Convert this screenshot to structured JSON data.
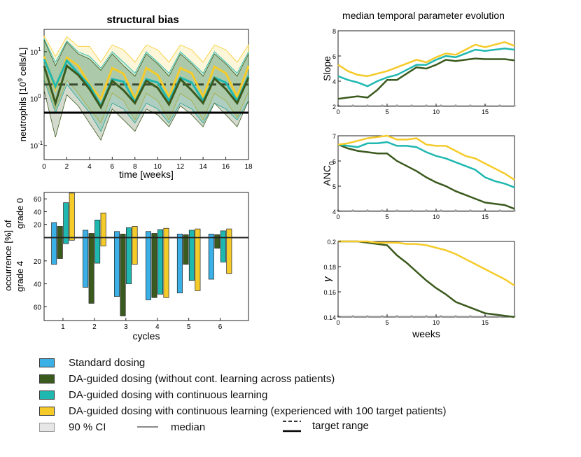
{
  "colors": {
    "standard": "#3ab0e6",
    "da": "#3b5a1e",
    "cl": "#1fb8b0",
    "exp": "#f5cb2a",
    "ci": "#e6e6e6",
    "median": "#8a8a8a"
  },
  "chart_data": [
    {
      "type": "line",
      "title": "structural bias",
      "xlabel": "time [weeks]",
      "ylabel": "neutrophils [10^9 cells/L]",
      "yscale": "log",
      "xlim": [
        0,
        18
      ],
      "ylim": [
        0.05,
        30
      ],
      "xticks": [
        0,
        2,
        4,
        6,
        8,
        10,
        12,
        14,
        16,
        18
      ],
      "yticks": [
        {
          "value": 10,
          "label": "10^1"
        },
        {
          "value": 1,
          "label": "10^0"
        },
        {
          "value": 0.1,
          "label": "10^-1"
        }
      ],
      "target_range": [
        0.5,
        2.0
      ],
      "series": [
        {
          "name": "DA-guided dosing (without cont. learning across patients)",
          "key": "da",
          "x": [
            0,
            1,
            2,
            3,
            4,
            5,
            6,
            7,
            8,
            9,
            10,
            11,
            12,
            13,
            14,
            15,
            16,
            17,
            18
          ],
          "median": [
            5,
            0.8,
            5,
            3.2,
            1.6,
            0.65,
            2.4,
            1.5,
            0.8,
            2.4,
            1.7,
            0.75,
            2.6,
            1.5,
            0.8,
            2.7,
            1.6,
            0.8,
            2.8
          ],
          "ci_low": [
            1.5,
            0.15,
            1.2,
            0.7,
            0.3,
            0.13,
            0.6,
            0.35,
            0.2,
            0.6,
            0.45,
            0.25,
            0.7,
            0.45,
            0.25,
            0.8,
            0.45,
            0.25,
            0.9
          ],
          "ci_high": [
            18,
            5,
            16,
            9,
            7,
            4,
            9,
            5,
            3,
            9,
            5.5,
            3,
            9,
            5.5,
            3,
            9,
            5.5,
            3,
            9
          ]
        },
        {
          "name": "DA-guided dosing with continuous learning",
          "key": "cl",
          "x": [
            0,
            1,
            2,
            3,
            4,
            5,
            6,
            7,
            8,
            9,
            10,
            11,
            12,
            13,
            14,
            15,
            16,
            17,
            18
          ],
          "median": [
            7,
            1.8,
            6.5,
            3.5,
            1.9,
            0.7,
            2.6,
            2.3,
            0.85,
            2.6,
            2.2,
            0.9,
            2.8,
            2.2,
            0.9,
            2.8,
            2.2,
            0.9,
            3
          ],
          "ci_low": [
            2.5,
            0.5,
            2,
            1,
            0.5,
            0.2,
            0.8,
            0.6,
            0.3,
            0.8,
            0.6,
            0.3,
            0.8,
            0.6,
            0.3,
            0.8,
            0.6,
            0.35,
            0.9
          ],
          "ci_high": [
            19,
            6,
            17,
            10,
            8,
            4.5,
            10,
            6,
            3.5,
            10,
            6,
            3.5,
            10,
            6,
            3.5,
            10,
            6,
            3.5,
            10
          ]
        },
        {
          "name": "DA-guided dosing with continuous learning (experienced with 100 target patients)",
          "key": "exp",
          "x": [
            0,
            1,
            2,
            3,
            4,
            5,
            6,
            7,
            8,
            9,
            10,
            11,
            12,
            13,
            14,
            15,
            16,
            17,
            18
          ],
          "median": [
            8,
            1.6,
            7.5,
            5,
            2,
            1,
            4.5,
            3.4,
            1,
            4.5,
            3.2,
            1.1,
            4.5,
            3.5,
            1.1,
            4.8,
            3.5,
            1.1,
            5
          ],
          "ci_low": [
            3,
            0.6,
            2.5,
            1.3,
            0.6,
            0.3,
            1.3,
            0.9,
            0.35,
            1.3,
            0.9,
            0.35,
            1.3,
            0.9,
            0.35,
            1.3,
            0.9,
            0.4,
            1.4
          ],
          "ci_high": [
            22,
            8,
            21,
            13,
            13,
            6,
            14,
            11,
            6,
            14,
            11,
            6,
            14,
            11,
            6,
            14,
            11,
            6,
            14
          ]
        }
      ]
    },
    {
      "type": "bar",
      "xlabel": "cycles",
      "ylabel_top": "occurrence [%] of",
      "ylabel_grade0": "grade 0",
      "ylabel_grade4": "grade 4",
      "categories": [
        "1",
        "2",
        "3",
        "4",
        "5",
        "6"
      ],
      "yticks_grade0": [
        20,
        40,
        60
      ],
      "yticks_grade4": [
        20,
        40,
        60
      ],
      "grade0": [
        {
          "key": "standard",
          "values": [
            23,
            11,
            9,
            9,
            5,
            5
          ]
        },
        {
          "key": "da",
          "values": [
            17,
            6,
            5,
            6,
            4,
            4
          ]
        },
        {
          "key": "cl",
          "values": [
            54,
            27,
            15,
            12,
            11,
            10
          ]
        },
        {
          "key": "exp",
          "values": [
            69,
            38,
            17,
            14,
            13,
            13
          ]
        }
      ],
      "grade4": [
        {
          "key": "standard",
          "values": [
            23,
            43,
            51,
            54,
            48,
            36
          ]
        },
        {
          "key": "da",
          "values": [
            18,
            57,
            68,
            52,
            23,
            9
          ]
        },
        {
          "key": "cl",
          "values": [
            5,
            22,
            40,
            49,
            37,
            21
          ]
        },
        {
          "key": "exp",
          "values": [
            2,
            7,
            23,
            52,
            46,
            31
          ]
        }
      ]
    },
    {
      "type": "line",
      "title": "median temporal parameter evolution",
      "panels": [
        {
          "ylabel": "Slope",
          "ylim": [
            2,
            8
          ],
          "yticks": [
            2,
            4,
            6,
            8
          ],
          "xticks": [
            0,
            5,
            10,
            15
          ],
          "x": [
            0,
            1,
            2,
            3,
            4,
            5,
            6,
            7,
            8,
            9,
            10,
            11,
            12,
            13,
            14,
            15,
            16,
            17,
            18
          ],
          "series": [
            {
              "key": "da",
              "values": [
                2.6,
                2.7,
                2.8,
                2.7,
                3.3,
                4.1,
                4.1,
                4.6,
                5.1,
                5.0,
                5.3,
                5.7,
                5.6,
                5.7,
                5.8,
                5.75,
                5.75,
                5.75,
                5.65
              ]
            },
            {
              "key": "cl",
              "values": [
                4.4,
                4.1,
                3.9,
                3.6,
                4.0,
                4.3,
                4.5,
                4.9,
                5.3,
                5.3,
                5.7,
                6.0,
                5.9,
                6.2,
                6.5,
                6.4,
                6.5,
                6.6,
                6.5
              ]
            },
            {
              "key": "exp",
              "values": [
                5.3,
                4.8,
                4.5,
                4.4,
                4.6,
                4.8,
                5.1,
                5.4,
                5.7,
                5.5,
                5.9,
                6.2,
                6.1,
                6.5,
                6.9,
                6.7,
                6.9,
                7.1,
                6.8
              ]
            }
          ]
        },
        {
          "ylabel": "ANC_0",
          "ylim": [
            4,
            7
          ],
          "yticks": [
            4,
            5,
            6,
            7
          ],
          "xticks": [
            0,
            5,
            10,
            15
          ],
          "x": [
            0,
            1,
            2,
            3,
            4,
            5,
            6,
            7,
            8,
            9,
            10,
            11,
            12,
            13,
            14,
            15,
            16,
            17,
            18
          ],
          "series": [
            {
              "key": "da",
              "values": [
                6.65,
                6.5,
                6.4,
                6.35,
                6.3,
                6.3,
                6.0,
                5.8,
                5.6,
                5.35,
                5.15,
                5.0,
                4.8,
                4.65,
                4.5,
                4.35,
                4.3,
                4.25,
                4.1
              ]
            },
            {
              "key": "cl",
              "values": [
                6.65,
                6.6,
                6.55,
                6.7,
                6.7,
                6.75,
                6.6,
                6.6,
                6.55,
                6.35,
                6.2,
                6.1,
                5.95,
                5.8,
                5.65,
                5.35,
                5.2,
                5.1,
                4.95
              ]
            },
            {
              "key": "exp",
              "values": [
                6.65,
                6.7,
                6.8,
                6.9,
                6.95,
                7.0,
                6.85,
                6.85,
                6.9,
                6.65,
                6.6,
                6.6,
                6.4,
                6.2,
                6.1,
                5.9,
                5.7,
                5.5,
                5.25
              ]
            }
          ]
        },
        {
          "ylabel": "γ",
          "xlabel": "weeks",
          "ylim": [
            0.14,
            0.2
          ],
          "yticks": [
            0.14,
            0.16,
            0.18,
            0.2
          ],
          "xticks": [
            0,
            5,
            10,
            15
          ],
          "x": [
            0,
            1,
            2,
            3,
            4,
            5,
            6,
            7,
            8,
            9,
            10,
            11,
            12,
            13,
            14,
            15,
            16,
            17,
            18
          ],
          "series": [
            {
              "key": "da",
              "values": [
                0.2,
                0.2,
                0.2,
                0.199,
                0.198,
                0.197,
                0.189,
                0.183,
                0.176,
                0.169,
                0.163,
                0.158,
                0.152,
                0.149,
                0.146,
                0.143,
                0.142,
                0.141,
                0.14
              ]
            },
            {
              "key": "exp",
              "values": [
                0.2,
                0.2,
                0.2,
                0.2,
                0.199,
                0.199,
                0.199,
                0.198,
                0.198,
                0.197,
                0.195,
                0.193,
                0.19,
                0.186,
                0.182,
                0.178,
                0.174,
                0.17,
                0.165
              ]
            }
          ]
        }
      ]
    }
  ],
  "legend": {
    "items": [
      {
        "key": "standard",
        "label": "Standard dosing"
      },
      {
        "key": "da",
        "label": "DA-guided dosing (without cont. learning across patients)"
      },
      {
        "key": "cl",
        "label": "DA-guided dosing with continuous learning"
      },
      {
        "key": "exp",
        "label": "DA-guided dosing with continuous learning (experienced with 100 target patients)"
      }
    ],
    "ci_label": "90 % CI",
    "median_label": "median",
    "target_label": "target range"
  }
}
